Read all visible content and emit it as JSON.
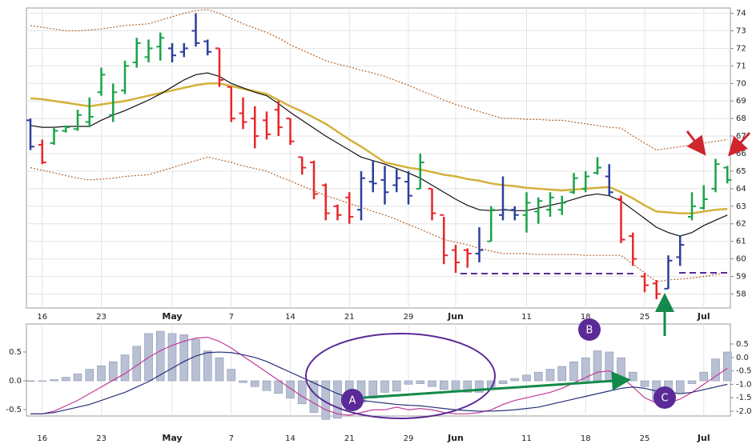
{
  "chart_data": [
    {
      "type": "ohlc",
      "categories": [
        null,
        "16",
        null,
        null,
        null,
        null,
        "23",
        null,
        null,
        null,
        null,
        null,
        "May",
        null,
        null,
        null,
        null,
        "7",
        null,
        null,
        null,
        null,
        "14",
        null,
        null,
        null,
        null,
        "21",
        null,
        null,
        null,
        null,
        "29",
        null,
        null,
        null,
        "Jun",
        null,
        null,
        null,
        null,
        null,
        "11",
        null,
        null,
        null,
        null,
        "18",
        null,
        null,
        null,
        null,
        "25",
        null,
        null,
        null,
        null,
        "Jul",
        null,
        null
      ],
      "open": [
        67.9,
        66.5,
        66.6,
        67.3,
        67.4,
        67.8,
        69.5,
        68.2,
        69.6,
        71.2,
        71.5,
        72.1,
        72.0,
        71.8,
        73.0,
        72.4,
        72.0,
        69.8,
        68.3,
        68.0,
        67.9,
        68.5,
        68.0,
        65.8,
        65.5,
        64.2,
        63.0,
        63.5,
        62.8,
        64.4,
        64.5,
        64.2,
        64.4,
        64.0,
        64.0,
        62.5,
        60.5,
        60.5,
        60.3,
        61.0,
        62.5,
        62.8,
        62.5,
        62.7,
        62.8,
        62.8,
        63.8,
        64.0,
        64.9,
        64.7,
        63.4,
        61.3,
        59.0,
        58.6,
        58.3,
        60.1,
        62.4,
        62.9,
        64.0,
        65.2
      ],
      "high": [
        68.0,
        66.8,
        67.5,
        67.6,
        68.5,
        69.2,
        70.9,
        70.0,
        71.3,
        72.6,
        72.5,
        72.9,
        72.3,
        72.3,
        74.0,
        72.5,
        72.0,
        69.8,
        69.2,
        68.7,
        68.4,
        69.0,
        68.0,
        65.8,
        65.6,
        64.3,
        63.1,
        63.8,
        65.0,
        65.6,
        65.3,
        65.1,
        65.0,
        66.0,
        64.0,
        62.4,
        60.8,
        60.6,
        61.8,
        63.0,
        64.7,
        63.0,
        63.8,
        63.5,
        63.8,
        63.6,
        64.9,
        65.0,
        65.8,
        65.4,
        63.6,
        61.5,
        59.2,
        58.8,
        60.2,
        61.3,
        63.8,
        64.2,
        65.7,
        65.3
      ],
      "low": [
        66.2,
        65.4,
        66.5,
        67.2,
        67.3,
        67.5,
        69.3,
        67.8,
        69.4,
        70.9,
        71.2,
        71.3,
        71.2,
        71.5,
        72.1,
        71.6,
        69.8,
        67.8,
        67.4,
        66.3,
        66.8,
        67.0,
        66.5,
        64.8,
        63.4,
        62.2,
        62.2,
        62.0,
        62.2,
        63.8,
        63.1,
        63.8,
        63.1,
        64.0,
        62.2,
        59.7,
        59.2,
        59.5,
        59.8,
        61.0,
        62.2,
        62.2,
        61.5,
        62.0,
        62.4,
        62.5,
        63.7,
        63.8,
        64.8,
        63.6,
        60.9,
        59.6,
        58.1,
        57.7,
        58.3,
        59.6,
        62.2,
        62.8,
        63.8,
        64.3
      ],
      "close": [
        66.4,
        65.5,
        67.3,
        67.5,
        68.2,
        68.1,
        70.5,
        69.5,
        71.0,
        72.3,
        72.0,
        72.6,
        71.6,
        72.0,
        72.3,
        71.8,
        70.2,
        68.0,
        67.8,
        67.0,
        67.1,
        67.5,
        66.7,
        65.2,
        63.7,
        62.6,
        62.5,
        62.4,
        64.6,
        64.3,
        63.8,
        64.6,
        63.6,
        65.5,
        62.6,
        60.2,
        59.8,
        60.3,
        60.5,
        62.8,
        62.8,
        62.5,
        63.2,
        63.3,
        63.5,
        63.2,
        64.6,
        64.7,
        65.2,
        63.8,
        61.1,
        60.0,
        58.5,
        58.0,
        59.9,
        60.8,
        63.0,
        63.4,
        65.4,
        64.5
      ],
      "bar_colors": [
        "#2b3f9e",
        "#e8262a",
        "#1aa34a",
        "#1aa34a",
        "#1aa34a",
        "#1aa34a",
        "#1aa34a",
        "#1aa34a",
        "#1aa34a",
        "#1aa34a",
        "#1aa34a",
        "#1aa34a",
        "#2b3f9e",
        "#2b3f9e",
        "#2b3f9e",
        "#2b3f9e",
        "#e8262a",
        "#e8262a",
        "#e8262a",
        "#e8262a",
        "#e8262a",
        "#e8262a",
        "#e8262a",
        "#e8262a",
        "#e8262a",
        "#e8262a",
        "#e8262a",
        "#e8262a",
        "#2b3f9e",
        "#2b3f9e",
        "#2b3f9e",
        "#2b3f9e",
        "#2b3f9e",
        "#1aa34a",
        "#e8262a",
        "#e8262a",
        "#e8262a",
        "#e8262a",
        "#2b3f9e",
        "#1aa34a",
        "#2b3f9e",
        "#2b3f9e",
        "#1aa34a",
        "#1aa34a",
        "#1aa34a",
        "#1aa34a",
        "#1aa34a",
        "#1aa34a",
        "#1aa34a",
        "#2b3f9e",
        "#e8262a",
        "#e8262a",
        "#e8262a",
        "#e8262a",
        "#2b3f9e",
        "#2b3f9e",
        "#1aa34a",
        "#1aa34a",
        "#1aa34a",
        "#1aa34a"
      ],
      "series": [
        {
          "color": "#d4b13a",
          "style": "solid",
          "values": [
            69.15,
            69.1,
            69.0,
            68.9,
            68.8,
            68.7,
            68.8,
            68.9,
            69.0,
            69.15,
            69.3,
            69.45,
            69.6,
            69.75,
            69.9,
            70.0,
            70.0,
            69.85,
            69.7,
            69.55,
            69.4,
            69.05,
            68.7,
            68.4,
            68.05,
            67.7,
            67.25,
            66.8,
            66.4,
            65.95,
            65.5,
            65.35,
            65.2,
            65.1,
            64.95,
            64.8,
            64.7,
            64.55,
            64.45,
            64.3,
            64.2,
            64.15,
            64.05,
            64.0,
            63.95,
            63.9,
            63.95,
            64.0,
            64.05,
            64.1,
            63.8,
            63.45,
            63.05,
            62.7,
            62.65,
            62.6,
            62.6,
            62.7,
            62.8,
            62.85
          ]
        },
        {
          "color": "#111111",
          "style": "solid",
          "values": [
            67.6,
            67.5,
            67.5,
            67.55,
            67.55,
            67.55,
            67.9,
            68.2,
            68.45,
            68.75,
            69.05,
            69.4,
            69.8,
            70.2,
            70.5,
            70.6,
            70.4,
            70.0,
            69.75,
            69.5,
            69.3,
            68.85,
            68.35,
            67.9,
            67.45,
            67.0,
            66.6,
            66.2,
            65.8,
            65.6,
            65.4,
            65.15,
            64.9,
            64.6,
            64.2,
            63.8,
            63.4,
            63.05,
            62.8,
            62.75,
            62.8,
            62.75,
            62.75,
            62.9,
            63.05,
            63.2,
            63.4,
            63.6,
            63.7,
            63.6,
            63.3,
            62.8,
            62.3,
            61.8,
            61.5,
            61.3,
            61.5,
            61.9,
            62.2,
            62.5
          ]
        },
        {
          "color": "#b5652e",
          "style": "dotted",
          "values": [
            73.3,
            73.2,
            73.1,
            73.0,
            73.0,
            73.05,
            73.1,
            73.2,
            73.3,
            73.35,
            73.4,
            73.6,
            73.8,
            74.0,
            74.15,
            74.2,
            74.0,
            73.7,
            73.4,
            73.15,
            72.9,
            72.6,
            72.2,
            71.9,
            71.6,
            71.3,
            71.1,
            70.95,
            70.75,
            70.6,
            70.4,
            70.15,
            69.9,
            69.6,
            69.35,
            69.05,
            68.8,
            68.6,
            68.4,
            68.2,
            68.0,
            68.0,
            67.95,
            67.95,
            67.9,
            67.9,
            67.8,
            67.7,
            67.6,
            67.5,
            67.45,
            67.0,
            66.6,
            66.2,
            66.3,
            66.4,
            66.5,
            66.6,
            66.7,
            66.8
          ]
        },
        {
          "color": "#b5652e",
          "style": "dotted",
          "values": [
            65.2,
            65.05,
            64.9,
            64.75,
            64.6,
            64.5,
            64.55,
            64.6,
            64.7,
            64.75,
            64.8,
            65.0,
            65.2,
            65.4,
            65.6,
            65.8,
            65.65,
            65.5,
            65.3,
            65.15,
            65.0,
            64.7,
            64.45,
            64.15,
            63.9,
            63.6,
            63.4,
            63.15,
            62.95,
            62.7,
            62.5,
            62.25,
            61.95,
            61.7,
            61.4,
            61.1,
            60.95,
            60.8,
            60.6,
            60.45,
            60.3,
            60.3,
            60.3,
            60.25,
            60.25,
            60.25,
            60.25,
            60.2,
            60.2,
            60.2,
            60.2,
            59.7,
            59.2,
            58.7,
            58.8,
            58.85,
            58.9,
            59.0,
            59.1,
            59.25
          ]
        }
      ],
      "ylim": [
        57.2,
        74.3
      ],
      "yticks": [
        58,
        59,
        60,
        61,
        62,
        63,
        64,
        65,
        66,
        67,
        68,
        69,
        70,
        71,
        72,
        73,
        74
      ],
      "grid": true
    },
    {
      "type": "macd",
      "histogram": {
        "color": "#b8c0d4",
        "values": [
          -0.01,
          0.0,
          0.02,
          0.06,
          0.12,
          0.2,
          0.26,
          0.33,
          0.45,
          0.6,
          0.82,
          0.86,
          0.82,
          0.8,
          0.72,
          0.52,
          0.4,
          0.2,
          -0.03,
          -0.1,
          -0.17,
          -0.22,
          -0.3,
          -0.4,
          -0.55,
          -0.67,
          -0.65,
          -0.5,
          -0.38,
          -0.3,
          -0.2,
          -0.18,
          -0.06,
          -0.05,
          -0.1,
          -0.15,
          -0.18,
          -0.2,
          -0.2,
          -0.15,
          -0.05,
          0.04,
          0.1,
          0.15,
          0.2,
          0.25,
          0.33,
          0.4,
          0.52,
          0.5,
          0.4,
          0.15,
          -0.1,
          -0.35,
          -0.3,
          -0.2,
          -0.05,
          0.15,
          0.38,
          0.5
        ]
      },
      "series": [
        {
          "color": "#c43a9a",
          "axis": "y2",
          "values": [
            -2.1,
            -2.1,
            -2.0,
            -1.8,
            -1.6,
            -1.35,
            -1.1,
            -0.85,
            -0.6,
            -0.3,
            0.0,
            0.25,
            0.45,
            0.6,
            0.72,
            0.75,
            0.6,
            0.35,
            0.05,
            -0.25,
            -0.55,
            -0.85,
            -1.15,
            -1.45,
            -1.7,
            -1.95,
            -2.1,
            -2.15,
            -2.05,
            -1.95,
            -1.95,
            -1.85,
            -1.95,
            -1.9,
            -1.95,
            -2.05,
            -2.1,
            -2.1,
            -2.05,
            -1.95,
            -1.75,
            -1.6,
            -1.5,
            -1.4,
            -1.3,
            -1.15,
            -0.95,
            -0.75,
            -0.55,
            -0.5,
            -0.7,
            -1.1,
            -1.5,
            -1.7,
            -1.7,
            -1.55,
            -1.3,
            -1.0,
            -0.7,
            -0.4
          ]
        },
        {
          "color": "#26317a",
          "axis": "y2",
          "values": [
            -2.1,
            -2.1,
            -2.05,
            -1.95,
            -1.85,
            -1.75,
            -1.6,
            -1.45,
            -1.3,
            -1.1,
            -0.9,
            -0.65,
            -0.4,
            -0.15,
            0.05,
            0.18,
            0.2,
            0.18,
            0.1,
            0.0,
            -0.15,
            -0.35,
            -0.55,
            -0.75,
            -0.95,
            -1.15,
            -1.35,
            -1.5,
            -1.6,
            -1.65,
            -1.7,
            -1.75,
            -1.78,
            -1.8,
            -1.85,
            -1.9,
            -1.95,
            -1.98,
            -2.0,
            -2.0,
            -1.98,
            -1.95,
            -1.9,
            -1.85,
            -1.75,
            -1.65,
            -1.55,
            -1.45,
            -1.35,
            -1.25,
            -1.15,
            -1.1,
            -1.15,
            -1.25,
            -1.3,
            -1.35,
            -1.3,
            -1.2,
            -1.1,
            -1.0
          ]
        }
      ],
      "ylim": [
        -0.611,
        0.986
      ],
      "yticks": [
        0.5,
        {
          "value": 0,
          "label": "0.0"
        },
        -0.5
      ],
      "y2lim": [
        -2.18,
        1.244
      ],
      "y2ticks": [
        0.5,
        {
          "value": 0,
          "label": "0.0"
        },
        -0.5,
        {
          "value": -1,
          "label": "-1.0"
        },
        -1.5,
        {
          "value": -2,
          "label": "-2.0"
        }
      ],
      "grid": true
    }
  ],
  "annotations": [
    "A",
    "B",
    "C"
  ]
}
